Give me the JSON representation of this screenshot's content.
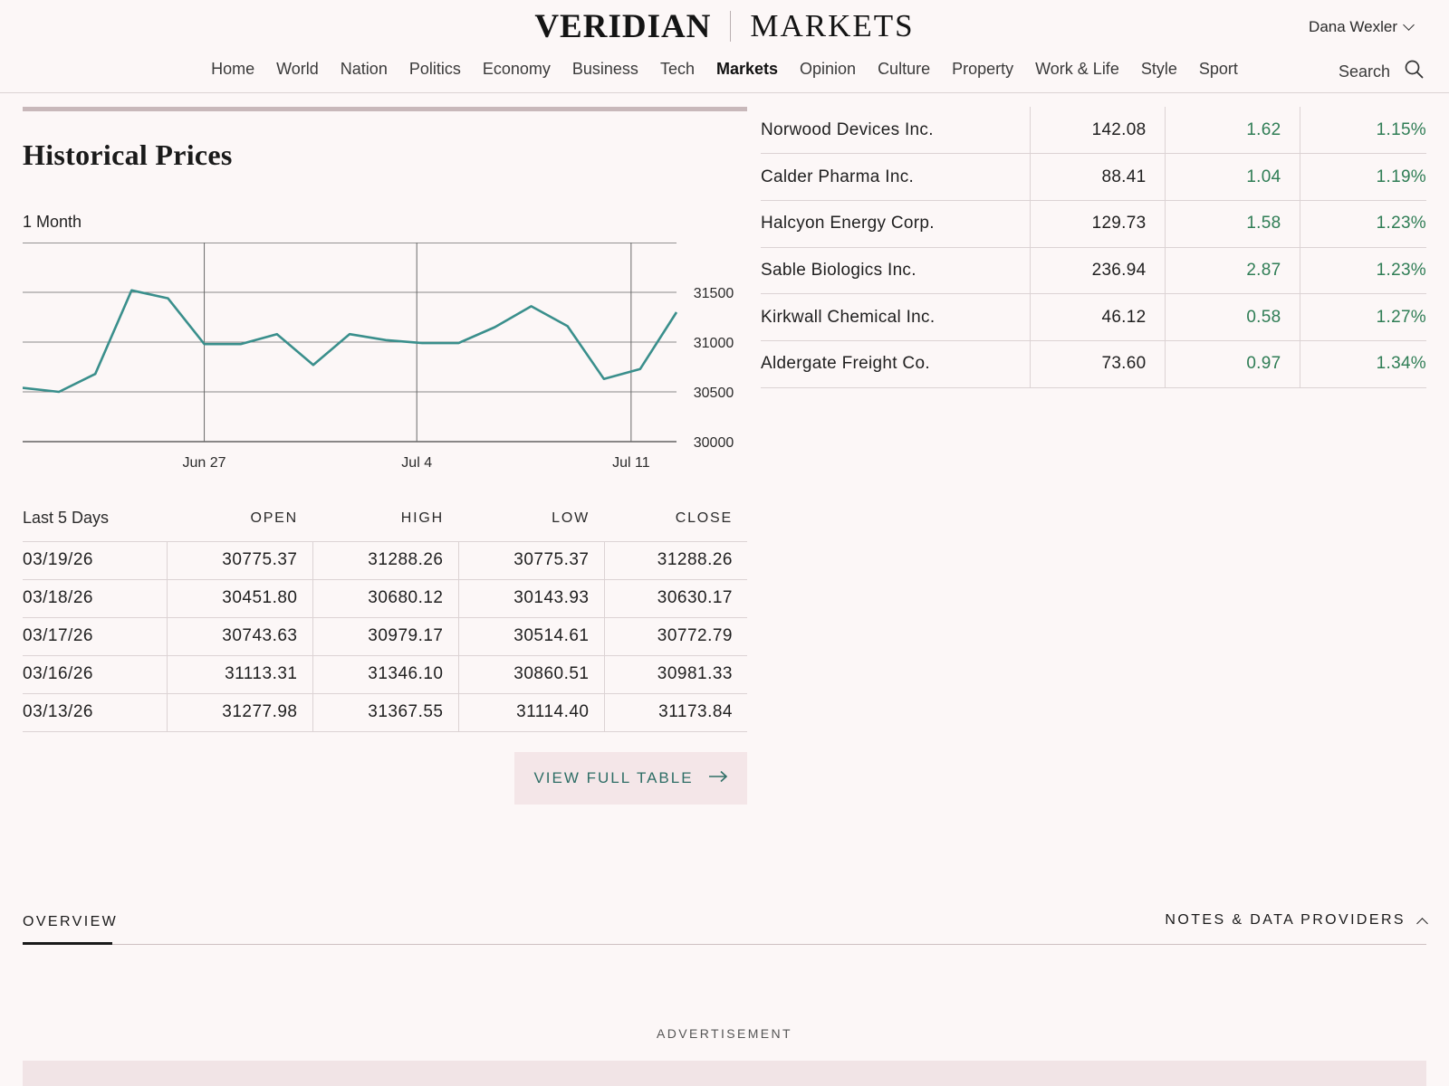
{
  "masthead": {
    "brand": "VERIDIAN",
    "section": "MARKETS"
  },
  "user": {
    "name": "Dana Wexler"
  },
  "nav": {
    "items": [
      "Home",
      "World",
      "Nation",
      "Politics",
      "Economy",
      "Business",
      "Tech",
      "Markets",
      "Opinion",
      "Culture",
      "Property",
      "Work & Life",
      "Style",
      "Sport"
    ],
    "active": "Markets",
    "search_label": "Search"
  },
  "historical": {
    "title": "Historical Prices",
    "range_label": "1 Month"
  },
  "chart_data": {
    "type": "line",
    "x_tick_labels": [
      "Jun 27",
      "Jul 4",
      "Jul 11"
    ],
    "y_tick_labels": [
      "31500",
      "31000",
      "30500",
      "30000"
    ],
    "ylim": [
      30000,
      32000
    ],
    "grid": true,
    "color": "#3a8f8c",
    "series": [
      {
        "values": [
          30540,
          30500,
          30680,
          31520,
          31440,
          30980,
          30980,
          31080,
          30770,
          31080,
          31020,
          30990,
          30990,
          31150,
          31360,
          31160,
          30630,
          30730,
          31300
        ]
      }
    ]
  },
  "last5": {
    "label": "Last 5 Days",
    "columns": [
      "OPEN",
      "HIGH",
      "LOW",
      "CLOSE"
    ],
    "rows": [
      {
        "date": "03/19/26",
        "open": "30775.37",
        "high": "31288.26",
        "low": "30775.37",
        "close": "31288.26"
      },
      {
        "date": "03/18/26",
        "open": "30451.80",
        "high": "30680.12",
        "low": "30143.93",
        "close": "30630.17"
      },
      {
        "date": "03/17/26",
        "open": "30743.63",
        "high": "30979.17",
        "low": "30514.61",
        "close": "30772.79"
      },
      {
        "date": "03/16/26",
        "open": "31113.31",
        "high": "31346.10",
        "low": "30860.51",
        "close": "30981.33"
      },
      {
        "date": "03/13/26",
        "open": "31277.98",
        "high": "31367.55",
        "low": "31114.40",
        "close": "31173.84"
      }
    ],
    "view_full_label": "VIEW FULL TABLE"
  },
  "quotes": [
    {
      "name": "Norwood Devices Inc.",
      "price": "142.08",
      "change": "1.62",
      "pct": "1.15%"
    },
    {
      "name": "Calder Pharma Inc.",
      "price": "88.41",
      "change": "1.04",
      "pct": "1.19%"
    },
    {
      "name": "Halcyon Energy Corp.",
      "price": "129.73",
      "change": "1.58",
      "pct": "1.23%"
    },
    {
      "name": "Sable Biologics Inc.",
      "price": "236.94",
      "change": "2.87",
      "pct": "1.23%"
    },
    {
      "name": "Kirkwall Chemical Inc.",
      "price": "46.12",
      "change": "0.58",
      "pct": "1.27%"
    },
    {
      "name": "Aldergate Freight Co.",
      "price": "73.60",
      "change": "0.97",
      "pct": "1.34%"
    }
  ],
  "tabs": {
    "overview": "OVERVIEW",
    "notes": "NOTES & DATA PROVIDERS"
  },
  "ad": {
    "label": "ADVERTISEMENT"
  },
  "colors": {
    "accent_green": "#2f7d55",
    "teal": "#2e6e66",
    "background": "#fcf7f7"
  }
}
